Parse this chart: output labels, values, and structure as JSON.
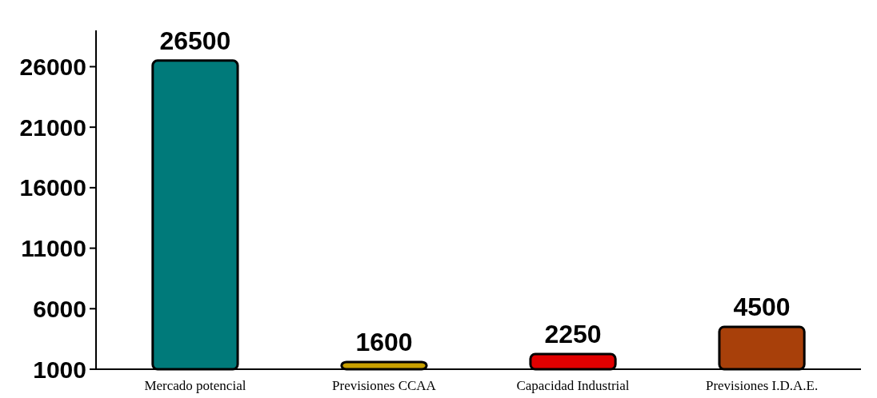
{
  "chart_data": {
    "type": "bar",
    "categories": [
      "Mercado potencial",
      "Previsiones CCAA",
      "Capacidad Industrial",
      "Previsiones I.D.A.E."
    ],
    "values": [
      26500,
      1600,
      2250,
      4500
    ],
    "colors": [
      "#007a7a",
      "#c8a000",
      "#e00000",
      "#a8400a"
    ],
    "ylim": [
      1000,
      29000
    ],
    "yticks": [
      1000,
      6000,
      11000,
      16000,
      21000,
      26000
    ],
    "data_labels": true,
    "grid": false
  }
}
